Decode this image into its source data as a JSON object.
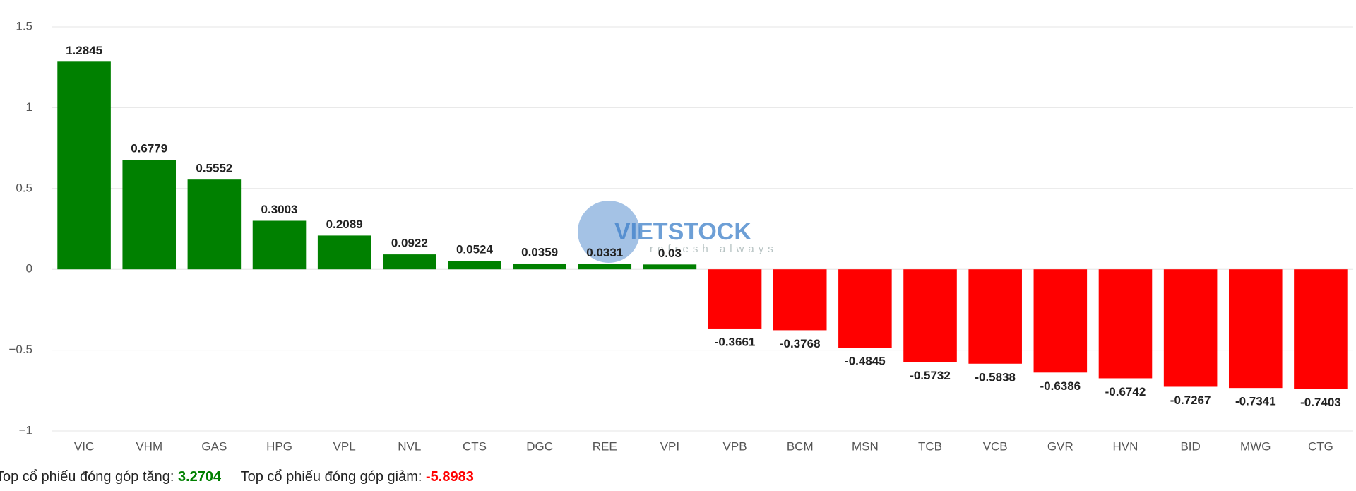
{
  "chart_data": {
    "type": "bar",
    "categories": [
      "VIC",
      "VHM",
      "GAS",
      "HPG",
      "VPL",
      "NVL",
      "CTS",
      "DGC",
      "REE",
      "VPI",
      "VPB",
      "BCM",
      "MSN",
      "TCB",
      "VCB",
      "GVR",
      "HVN",
      "BID",
      "MWG",
      "CTG"
    ],
    "values": [
      1.2845,
      0.6779,
      0.5552,
      0.3003,
      0.2089,
      0.0922,
      0.0524,
      0.0359,
      0.0331,
      0.03,
      -0.3661,
      -0.3768,
      -0.4845,
      -0.5732,
      -0.5838,
      -0.6386,
      -0.6742,
      -0.7267,
      -0.7341,
      -0.7403
    ],
    "positive_color": "#008000",
    "negative_color": "#ff0000",
    "ylim": [
      -1,
      1.5
    ],
    "yticks": [
      {
        "value": -1,
        "label": "−1"
      },
      {
        "value": -0.5,
        "label": "−0.5"
      },
      0,
      0.5,
      1,
      1.5
    ],
    "grid": true
  },
  "watermark": {
    "brand": "VIETSTOCK",
    "tagline": "refresh always"
  },
  "footer": {
    "gain_label": "Top cổ phiếu đóng góp tăng:",
    "gain_value": 3.2704,
    "loss_label": "Top cổ phiếu đóng góp giảm:",
    "loss_value": -5.8983
  }
}
